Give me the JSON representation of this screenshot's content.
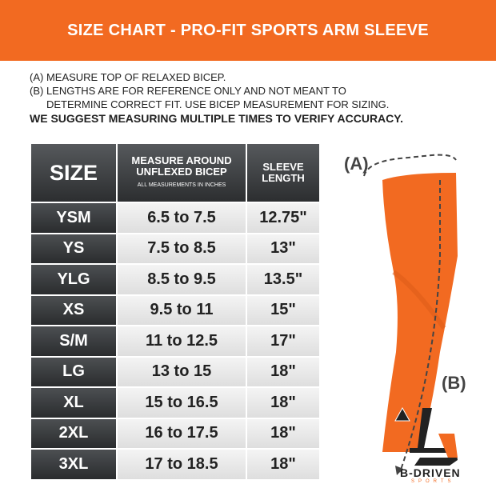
{
  "title": "SIZE CHART - PRO-FIT SPORTS ARM SLEEVE",
  "notes": {
    "a": "(A) MEASURE TOP OF RELAXED BICEP.",
    "b1": "(B) LENGTHS ARE FOR REFERENCE ONLY AND NOT MEANT TO",
    "b2": "DETERMINE CORRECT FIT. USE BICEP MEASUREMENT FOR SIZING.",
    "suggest": "WE SUGGEST MEASURING MULTIPLE TIMES TO VERIFY ACCURACY."
  },
  "table": {
    "headers": {
      "size": "SIZE",
      "measure": "MEASURE AROUND UNFLEXED BICEP",
      "measure_note": "ALL MEASUREMENTS IN INCHES",
      "length": "SLEEVE LENGTH"
    },
    "rows": [
      {
        "size": "YSM",
        "bicep": "6.5 to 7.5",
        "length": "12.75\""
      },
      {
        "size": "YS",
        "bicep": "7.5 to 8.5",
        "length": "13\""
      },
      {
        "size": "YLG",
        "bicep": "8.5 to 9.5",
        "length": "13.5\""
      },
      {
        "size": "XS",
        "bicep": "9.5 to 11",
        "length": "15\""
      },
      {
        "size": "S/M",
        "bicep": "11 to 12.5",
        "length": "17\""
      },
      {
        "size": "LG",
        "bicep": "13 to 15",
        "length": "18\""
      },
      {
        "size": "XL",
        "bicep": "15 to 16.5",
        "length": "18\""
      },
      {
        "size": "2XL",
        "bicep": "16 to 17.5",
        "length": "18\""
      },
      {
        "size": "3XL",
        "bicep": "17 to 18.5",
        "length": "18\""
      }
    ]
  },
  "diagram": {
    "label_a": "(A)",
    "label_b": "(B)",
    "sleeve_color": "#f26a21"
  },
  "logo": {
    "name": "B-DRIVEN",
    "sub": "SPORTS"
  },
  "colors": {
    "accent": "#f26a21",
    "dark": "#2c2e30"
  }
}
